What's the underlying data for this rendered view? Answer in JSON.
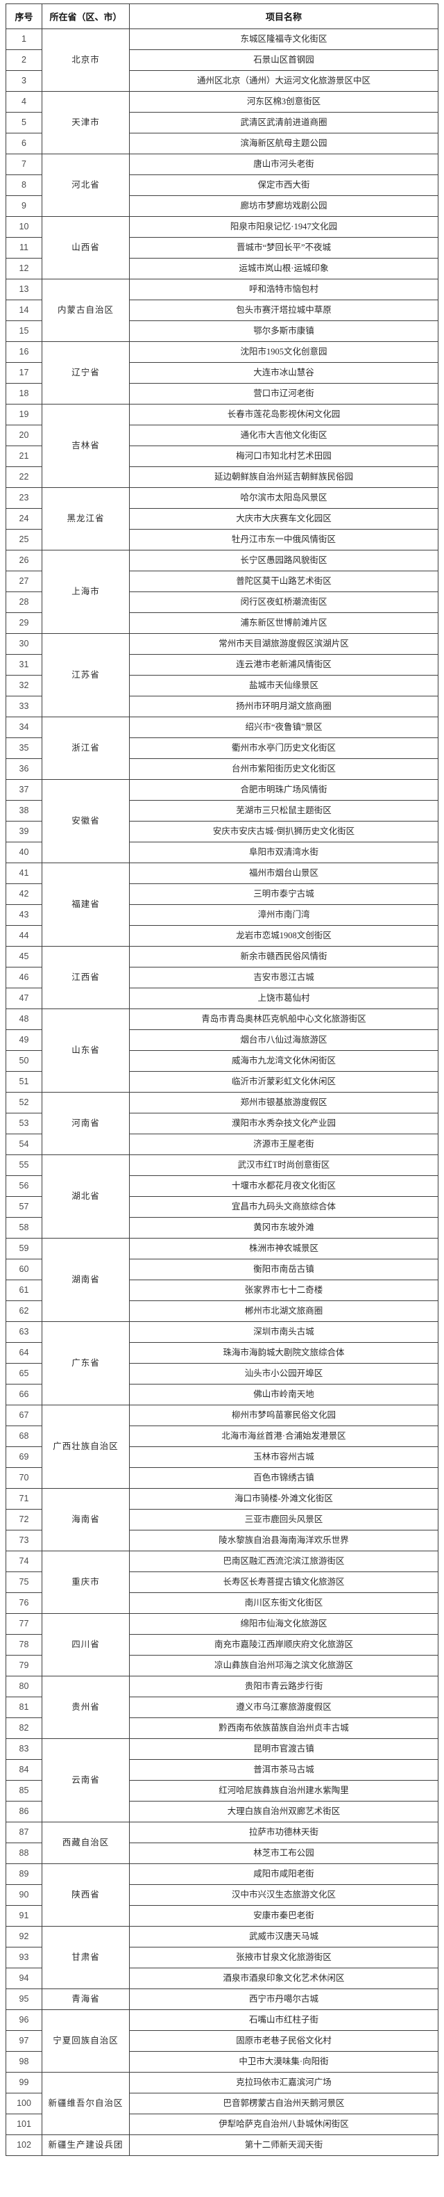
{
  "table": {
    "headers": [
      "序号",
      "所在省（区、市）",
      "项目名称"
    ],
    "provinces": [
      {
        "name": "北京市",
        "projects": [
          "东城区隆福寺文化街区",
          "石景山区首钢园",
          "通州区北京（通州）大运河文化旅游景区中区"
        ]
      },
      {
        "name": "天津市",
        "projects": [
          "河东区棉3创意街区",
          "武清区武清前进道商圈",
          "滨海新区航母主题公园"
        ]
      },
      {
        "name": "河北省",
        "projects": [
          "唐山市河头老街",
          "保定市西大街",
          "廊坊市梦廊坊戏剧公园"
        ]
      },
      {
        "name": "山西省",
        "projects": [
          "阳泉市阳泉记忆·1947文化园",
          "晋城市“梦回长平”不夜城",
          "运城市岚山根·运城印象"
        ]
      },
      {
        "name": "内蒙古自治区",
        "projects": [
          "呼和浩特市恼包村",
          "包头市赛汗塔拉城中草原",
          "鄂尔多斯市康镇"
        ]
      },
      {
        "name": "辽宁省",
        "projects": [
          "沈阳市1905文化创意园",
          "大连市冰山慧谷",
          "营口市辽河老街"
        ]
      },
      {
        "name": "吉林省",
        "projects": [
          "长春市莲花岛影视休闲文化园",
          "通化市大吉他文化街区",
          "梅河口市知北村艺术田园",
          "延边朝鲜族自治州延吉朝鲜族民俗园"
        ]
      },
      {
        "name": "黑龙江省",
        "projects": [
          "哈尔滨市太阳岛风景区",
          "大庆市大庆赛车文化园区",
          "牡丹江市东一中俄风情街区"
        ]
      },
      {
        "name": "上海市",
        "projects": [
          "长宁区愚园路风貌街区",
          "普陀区莫干山路艺术街区",
          "闵行区夜虹桥潮流街区",
          "浦东新区世博前滩片区"
        ]
      },
      {
        "name": "江苏省",
        "projects": [
          "常州市天目湖旅游度假区滨湖片区",
          "连云港市老新浦风情街区",
          "盐城市天仙缘景区",
          "扬州市环明月湖文旅商圈"
        ]
      },
      {
        "name": "浙江省",
        "projects": [
          "绍兴市“夜鲁镇”景区",
          "衢州市水亭门历史文化街区",
          "台州市紫阳街历史文化街区"
        ]
      },
      {
        "name": "安徽省",
        "projects": [
          "合肥市明珠广场风情街",
          "芜湖市三只松鼠主题街区",
          "安庆市安庆古城·倒扒狮历史文化街区",
          "阜阳市双清湾水街"
        ]
      },
      {
        "name": "福建省",
        "projects": [
          "福州市烟台山景区",
          "三明市泰宁古城",
          "漳州市南门湾",
          "龙岩市恋城1908文创街区"
        ]
      },
      {
        "name": "江西省",
        "projects": [
          "新余市赣西民俗风情街",
          "吉安市恩江古城",
          "上饶市葛仙村"
        ]
      },
      {
        "name": "山东省",
        "projects": [
          "青岛市青岛奥林匹克帆船中心文化旅游街区",
          "烟台市八仙过海旅游区",
          "威海市九龙湾文化休闲街区",
          "临沂市沂蒙彩虹文化休闲区"
        ]
      },
      {
        "name": "河南省",
        "projects": [
          "郑州市银基旅游度假区",
          "濮阳市水秀杂技文化产业园",
          "济源市王屋老街"
        ]
      },
      {
        "name": "湖北省",
        "projects": [
          "武汉市红T时尚创意街区",
          "十堰市水都花月夜文化街区",
          "宜昌市九码头文商旅综合体",
          "黄冈市东坡外滩"
        ]
      },
      {
        "name": "湖南省",
        "projects": [
          "株洲市神农城景区",
          "衡阳市南岳古镇",
          "张家界市七十二奇楼",
          "郴州市北湖文旅商圈"
        ]
      },
      {
        "name": "广东省",
        "projects": [
          "深圳市南头古城",
          "珠海市海韵城大剧院文旅综合体",
          "汕头市小公园开埠区",
          "佛山市岭南天地"
        ]
      },
      {
        "name": "广西壮族自治区",
        "projects": [
          "柳州市梦呜苗寨民俗文化园",
          "北海市海丝首港·合浦始发港景区",
          "玉林市容州古城",
          "百色市锦绣古镇"
        ]
      },
      {
        "name": "海南省",
        "projects": [
          "海口市骑楼-外滩文化街区",
          "三亚市鹿回头风景区",
          "陵水黎族自治县海南海洋欢乐世界"
        ]
      },
      {
        "name": "重庆市",
        "projects": [
          "巴南区融汇西流沱滨江旅游街区",
          "长寿区长寿菩提古镇文化旅游区",
          "南川区东街文化街区"
        ]
      },
      {
        "name": "四川省",
        "projects": [
          "绵阳市仙海文化旅游区",
          "南充市嘉陵江西岸顺庆府文化旅游区",
          "凉山彝族自治州邛海之滨文化旅游区"
        ]
      },
      {
        "name": "贵州省",
        "projects": [
          "贵阳市青云路步行街",
          "遵义市乌江寨旅游度假区",
          "黔西南布依族苗族自治州贞丰古城"
        ]
      },
      {
        "name": "云南省",
        "projects": [
          "昆明市官渡古镇",
          "普洱市茶马古城",
          "红河哈尼族彝族自治州建水紫陶里",
          "大理白族自治州双廊艺术街区"
        ]
      },
      {
        "name": "西藏自治区",
        "projects": [
          "拉萨市功德林天街",
          "林芝市工布公园"
        ]
      },
      {
        "name": "陕西省",
        "projects": [
          "咸阳市咸阳老街",
          "汉中市兴汉生态旅游文化区",
          "安康市秦巴老街"
        ]
      },
      {
        "name": "甘肃省",
        "projects": [
          "武威市汉唐天马城",
          "张掖市甘泉文化旅游街区",
          "酒泉市酒泉印象文化艺术休闲区"
        ]
      },
      {
        "name": "青海省",
        "projects": [
          "西宁市丹噶尔古城"
        ]
      },
      {
        "name": "宁夏回族自治区",
        "projects": [
          "石嘴山市红柱子街",
          "固原市老巷子民俗文化村",
          "中卫市大漠味集·向阳街"
        ]
      },
      {
        "name": "新疆维吾尔自治区",
        "projects": [
          "克拉玛依市汇嘉滨河广场",
          "巴音郭楞蒙古自治州天鹅河景区",
          "伊犁哈萨克自治州八卦城休闲街区"
        ]
      },
      {
        "name": "新疆生产建设兵团",
        "projects": [
          "第十二师新天润天街"
        ]
      }
    ],
    "first_index": 1
  }
}
